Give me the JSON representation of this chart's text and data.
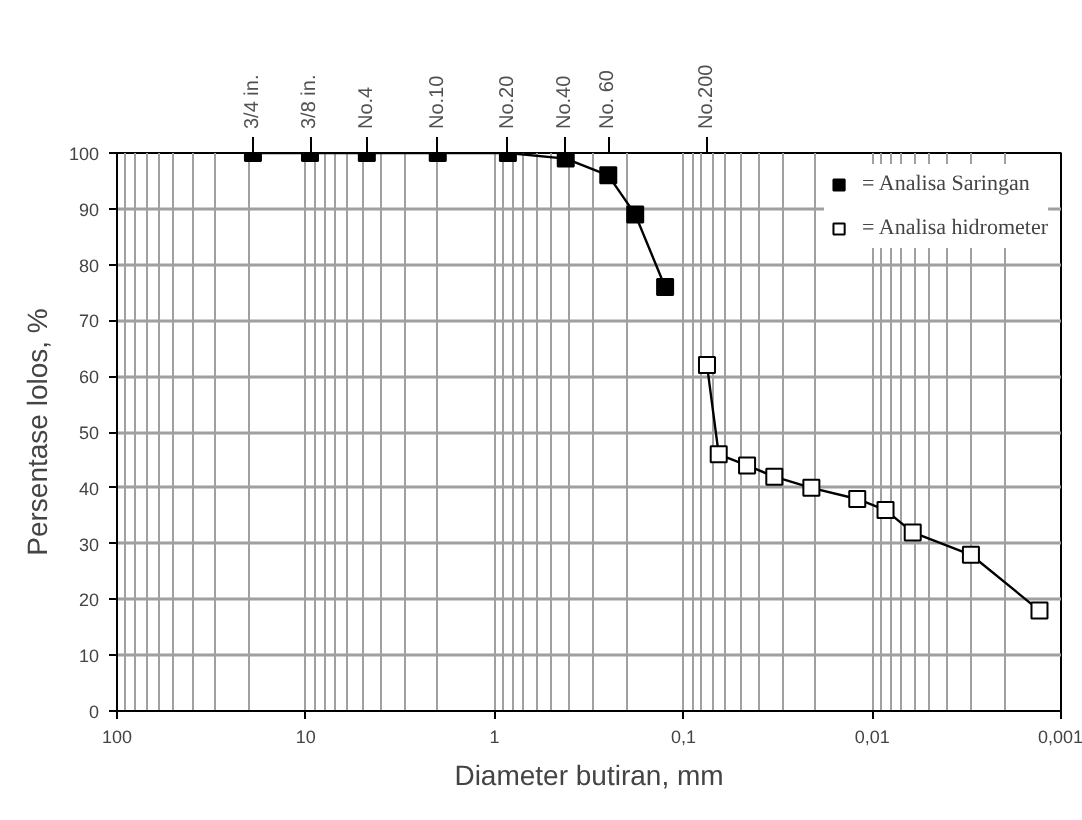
{
  "chart_data": {
    "type": "line",
    "xlabel": "Diameter butiran, mm",
    "ylabel": "Persentase lolos, %",
    "log": "x",
    "grid": true,
    "legend": "top right",
    "line_style": "solid",
    "xlim": [
      100,
      0.001
    ],
    "xticks": [
      100,
      10,
      1,
      {
        "value": 0.1,
        "label": "0,1"
      },
      {
        "value": 0.01,
        "label": "0,01"
      },
      {
        "value": 0.001,
        "label": "0,001"
      }
    ],
    "annotations": [
      {
        "text": "3/4 in.",
        "x": 19.05
      },
      {
        "text": "3/8 in.",
        "x": 9.5
      },
      {
        "text": "No.4",
        "x": 4.75
      },
      {
        "text": "No.10",
        "x": 2.0
      },
      {
        "text": "No.20",
        "x": 0.85
      },
      {
        "text": "No.40",
        "x": 0.425
      },
      {
        "text": "No. 60",
        "x": 0.25
      },
      {
        "text": "No.200",
        "x": 0.075
      }
    ],
    "ylim": [
      0,
      100
    ],
    "yticks": [
      0,
      10,
      20,
      30,
      40,
      50,
      60,
      70,
      80,
      90,
      100
    ],
    "series": [
      {
        "name": "= Analisa Saringan",
        "color": "#000000",
        "marker": "square",
        "x": [
          19.05,
          9.5,
          4.75,
          2.0,
          0.85,
          0.42,
          0.25,
          0.18,
          0.125
        ],
        "values": [
          100,
          100,
          100,
          100,
          100,
          99,
          96,
          89,
          76
        ]
      },
      {
        "name": "= Analisa hidrometer",
        "color": "#000000",
        "marker": "square",
        "x": [
          0.075,
          0.065,
          0.046,
          0.033,
          0.021,
          0.012,
          0.0085,
          0.0061,
          0.003,
          0.0013
        ],
        "values": [
          62,
          46,
          44,
          42,
          40,
          38,
          36,
          32,
          28,
          18
        ]
      }
    ]
  }
}
